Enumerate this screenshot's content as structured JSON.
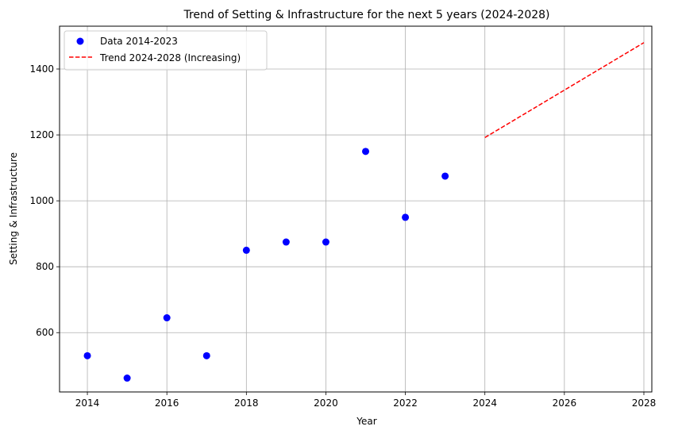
{
  "chart_data": {
    "type": "scatter",
    "title": "Trend of Setting & Infrastructure for the next 5 years (2024-2028)",
    "xlabel": "Year",
    "ylabel": "Setting & Infrastructure",
    "xlim": [
      2013.3,
      2028.2
    ],
    "ylim": [
      420,
      1530
    ],
    "xticks": [
      2014,
      2016,
      2018,
      2020,
      2022,
      2024,
      2026,
      2028
    ],
    "yticks": [
      600,
      800,
      1000,
      1200,
      1400
    ],
    "grid": true,
    "legend_position": "top-left",
    "series": [
      {
        "name": "Data 2014-2023",
        "kind": "scatter",
        "color": "#0000ff",
        "x": [
          2014,
          2015,
          2016,
          2017,
          2018,
          2019,
          2020,
          2021,
          2022,
          2023
        ],
        "y": [
          530,
          462,
          645,
          530,
          850,
          875,
          875,
          1150,
          950,
          1075
        ]
      },
      {
        "name": "Trend 2024-2028 (Increasing)",
        "kind": "line",
        "style": "dashed",
        "color": "#ff0000",
        "x": [
          2024,
          2028
        ],
        "y": [
          1192,
          1480
        ]
      }
    ]
  }
}
